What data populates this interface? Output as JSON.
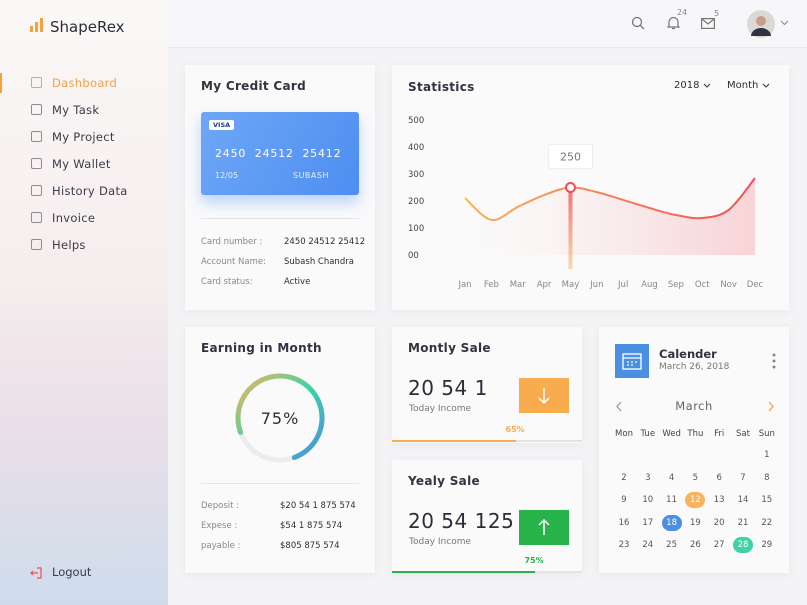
{
  "brand": "ShapeRex",
  "header": {
    "notifications": "24",
    "messages": "5"
  },
  "menu": [
    "Dashboard",
    "My Task",
    "My Project",
    "My Wallet",
    "History Data",
    "Invoice",
    "Helps"
  ],
  "logout": "Logout",
  "credit_card": {
    "title": "My Credit Card",
    "network": "VISA",
    "number": "2450  24512  25412",
    "expiry": "12/05",
    "holder": "SUBASH",
    "details": [
      {
        "label": "Card number :",
        "value": "2450 24512 25412"
      },
      {
        "label": "Account Name:",
        "value": "Subash Chandra"
      },
      {
        "label": "Card status:",
        "value": "Active"
      }
    ]
  },
  "statistics_filters": [
    "2018",
    "Month"
  ],
  "chart_data": {
    "type": "area",
    "title": "Statistics",
    "categories": [
      "Jan",
      "Feb",
      "Mar",
      "Apr",
      "May",
      "Jun",
      "Jul",
      "Aug",
      "Sep",
      "Oct",
      "Nov",
      "Dec"
    ],
    "series": [
      {
        "name": "Statistics",
        "colors": [
          "#f8b35b",
          "#ef4e55"
        ],
        "values": [
          211,
          130,
          178,
          222,
          250,
          233,
          204,
          174,
          148,
          137,
          167,
          285
        ]
      }
    ],
    "ylim": [
      0,
      500
    ],
    "yticks": [
      {
        "value": 0,
        "label": "00"
      },
      100,
      200,
      300,
      400,
      500
    ],
    "highlight_index": 4
  },
  "earning": {
    "title": "Earning in Month",
    "percent": {
      "value": 75,
      "label": "75%"
    },
    "details": [
      {
        "label": "Deposit :",
        "value": "$20 54 1 875 574"
      },
      {
        "label": "Expese :",
        "value": "$54 1 875 574"
      },
      {
        "label": "payable :",
        "value": "$805 875 574"
      }
    ]
  },
  "monthly_sale": {
    "title": "Montly Sale",
    "amount": "20 54 1",
    "caption": "Today Income",
    "progress": {
      "value": 65,
      "label": "65%"
    }
  },
  "yearly_sale": {
    "title": "Yealy Sale",
    "amount": "20 54 125",
    "caption": "Today Income",
    "progress": {
      "value": 75,
      "label": "75%"
    }
  },
  "calendar": {
    "title": "Calender",
    "date": "March 26, 2018",
    "month": "March",
    "weekdays": [
      "Mon",
      "Tue",
      "Wed",
      "Thu",
      "Fri",
      "Sat",
      "Sun"
    ],
    "weeks": [
      [
        null,
        null,
        null,
        null,
        null,
        null,
        1
      ],
      [
        2,
        3,
        4,
        5,
        6,
        7,
        8
      ],
      [
        9,
        10,
        11,
        12,
        13,
        14,
        15
      ],
      [
        16,
        17,
        18,
        19,
        20,
        21,
        22
      ],
      [
        23,
        24,
        25,
        26,
        27,
        28,
        29
      ]
    ],
    "marked": [
      {
        "day": 12,
        "color": "#f8b35b"
      },
      {
        "day": 18,
        "color": "#4a90e2"
      },
      {
        "day": 28,
        "color": "#3dd3a4"
      }
    ]
  }
}
